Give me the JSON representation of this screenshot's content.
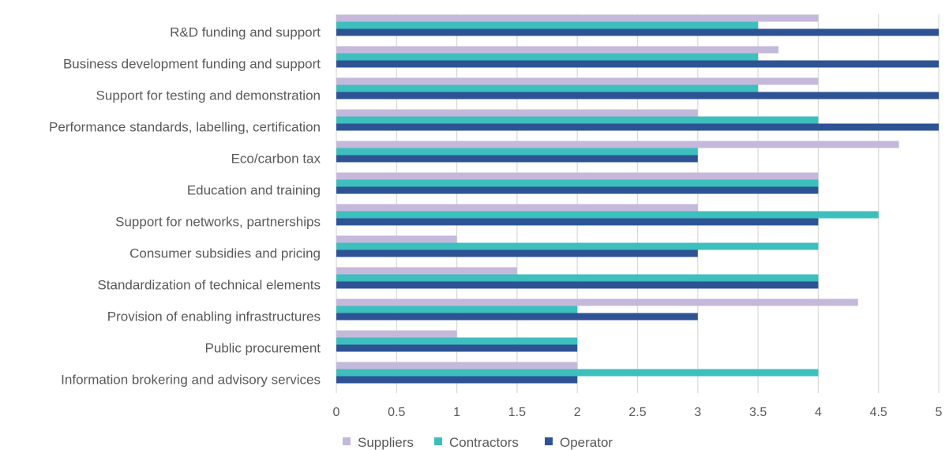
{
  "chart_data": {
    "type": "bar",
    "orientation": "horizontal",
    "categories": [
      "R&D funding and support",
      "Business development funding and support",
      "Support for testing and demonstration",
      "Performance standards, labelling, certification",
      "Eco/carbon tax",
      "Education and training",
      "Support for networks, partnerships",
      "Consumer subsidies and pricing",
      "Standardization of technical elements",
      "Provision of enabling infrastructures",
      "Public procurement",
      "Information brokering and advisory services"
    ],
    "series": [
      {
        "name": "Suppliers",
        "color": "#c5b9db",
        "values": [
          4,
          3.67,
          4,
          3,
          4.67,
          4,
          3,
          1,
          1.5,
          4.33,
          1,
          2
        ]
      },
      {
        "name": "Contractors",
        "color": "#3dbfbd",
        "values": [
          3.5,
          3.5,
          3.5,
          4,
          3,
          4,
          4.5,
          4,
          4,
          2,
          2,
          4
        ]
      },
      {
        "name": "Operator",
        "color": "#2e5395",
        "values": [
          5,
          5,
          5,
          5,
          3,
          4,
          4,
          3,
          4,
          3,
          2,
          2
        ]
      }
    ],
    "xticks": [
      "0",
      "0.5",
      "1",
      "1.5",
      "2",
      "2.5",
      "3",
      "3.5",
      "4",
      "4.5",
      "5"
    ],
    "xlim": [
      0,
      5
    ],
    "grid": true,
    "legend_position": "bottom"
  }
}
